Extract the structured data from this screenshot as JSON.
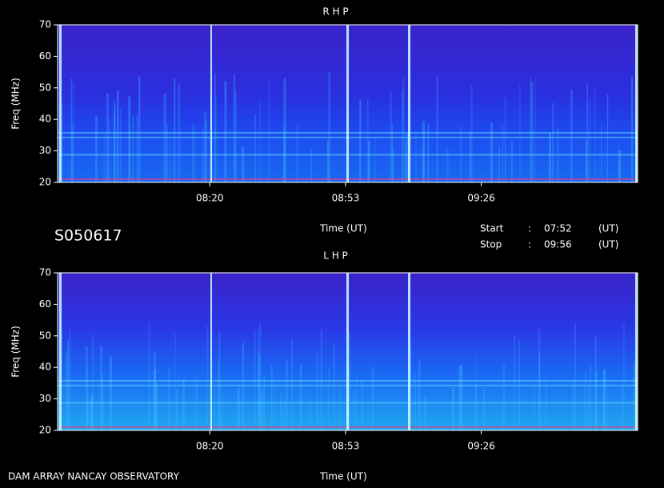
{
  "header": {
    "id": "S050617",
    "start": {
      "label": "Start",
      "sep": ":",
      "time": "07:52",
      "unit": "(UT)"
    },
    "stop": {
      "label": "Stop",
      "sep": ":",
      "time": "09:56",
      "unit": "(UT)"
    }
  },
  "footer": {
    "observatory": "DAM ARRAY  NANCAY OBSERVATORY"
  },
  "chart_data": [
    {
      "type": "spectrogram",
      "title": "R H P",
      "y_label": "Freq (MHz)",
      "x_label": "Time (UT)",
      "ylim": [
        20,
        70
      ],
      "yticks": [
        20,
        30,
        40,
        50,
        60,
        70
      ],
      "xlim": [
        463,
        604
      ],
      "xticks": [
        {
          "value": 500,
          "label": "08:20"
        },
        {
          "value": 533,
          "label": "08:53"
        },
        {
          "value": 566,
          "label": "09:26"
        }
      ]
    },
    {
      "type": "spectrogram",
      "title": "L H P",
      "y_label": "Freq (MHz)",
      "x_label": "Time (UT)",
      "ylim": [
        20,
        70
      ],
      "yticks": [
        20,
        30,
        40,
        50,
        60,
        70
      ],
      "xlim": [
        463,
        604
      ],
      "xticks": [
        {
          "value": 500,
          "label": "08:20"
        },
        {
          "value": 533,
          "label": "08:53"
        },
        {
          "value": 566,
          "label": "09:26"
        }
      ]
    }
  ]
}
